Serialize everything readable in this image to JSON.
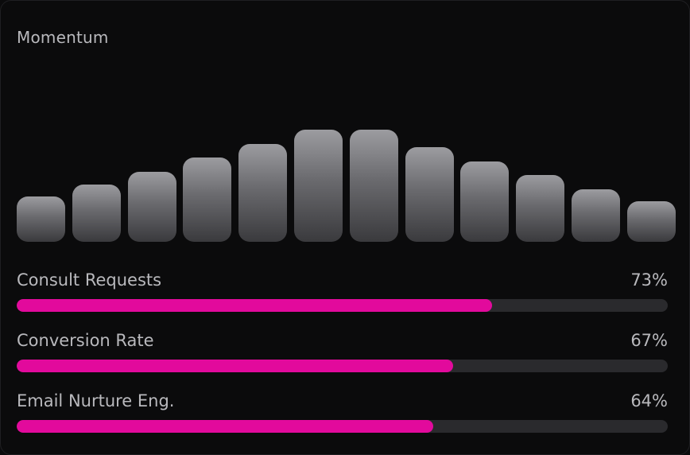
{
  "card": {
    "title": "Momentum"
  },
  "bars": [
    {
      "level": 0.39
    },
    {
      "level": 0.49
    },
    {
      "level": 0.6
    },
    {
      "level": 0.72
    },
    {
      "level": 0.84
    },
    {
      "level": 0.96
    },
    {
      "level": 0.96
    },
    {
      "level": 0.81
    },
    {
      "level": 0.69
    },
    {
      "level": 0.57
    },
    {
      "level": 0.45
    },
    {
      "level": 0.35
    }
  ],
  "metrics": [
    {
      "label": "Consult Requests",
      "value": "73%",
      "percent": 73
    },
    {
      "label": "Conversion Rate",
      "value": "67%",
      "percent": 67
    },
    {
      "label": "Email Nurture Eng.",
      "value": "64%",
      "percent": 64
    }
  ],
  "colors": {
    "background": "#0b0b0c",
    "accent": "#e20a9c",
    "track": "#2a2a2d",
    "text": "#b9b9bd"
  }
}
